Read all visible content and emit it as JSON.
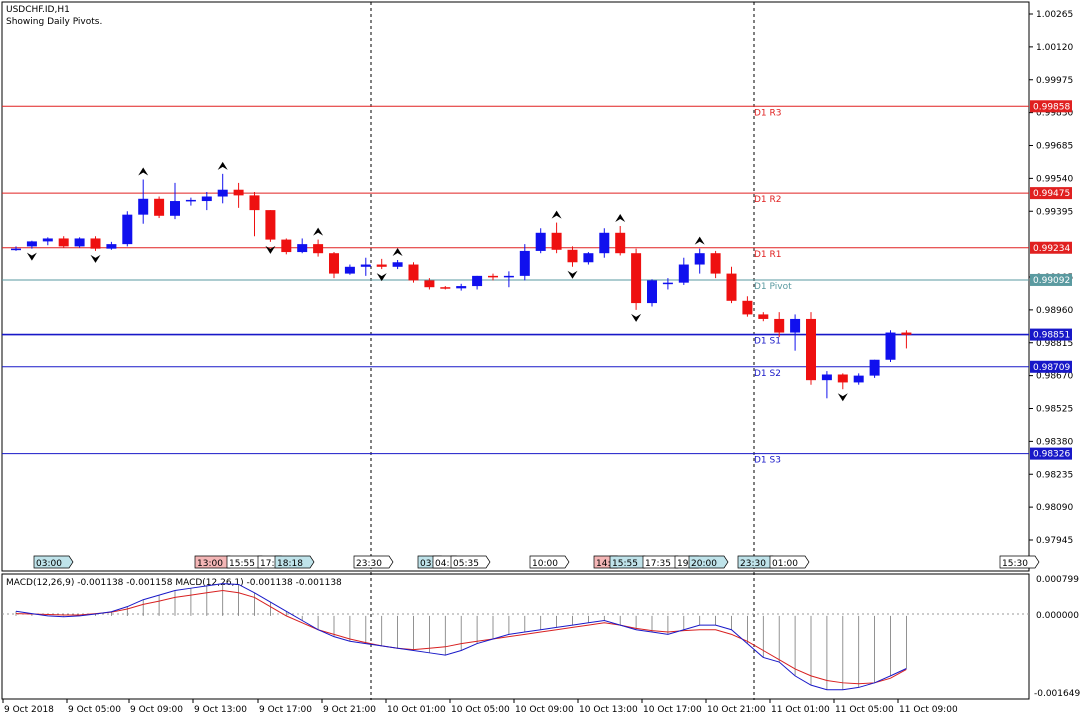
{
  "header": {
    "symbol": "USDCHF.ID,H1",
    "subtitle": "Showing Daily Pivots."
  },
  "price_axis": {
    "labels": [
      "1.00265",
      "1.00120",
      "0.99975",
      "0.99830",
      "0.99685",
      "0.99540",
      "0.99395",
      "0.99105",
      "0.98960",
      "0.98815",
      "0.98670",
      "0.98525",
      "0.98380",
      "0.98235",
      "0.98090",
      "0.97945"
    ]
  },
  "pivot_levels": [
    {
      "label": "D1 R3",
      "value": "0.99858",
      "price": 0.99858,
      "color": "#e02020"
    },
    {
      "label": "D1 R2",
      "value": "0.99475",
      "price": 0.99475,
      "color": "#e02020"
    },
    {
      "label": "D1 R1",
      "value": "0.99234",
      "price": 0.99234,
      "color": "#e02020"
    },
    {
      "label": "D1 Pivot",
      "value": "0.99092",
      "price": 0.99092,
      "color": "#5a9aa0"
    },
    {
      "label": "D1 S1",
      "value": "0.98851",
      "price": 0.98851,
      "color": "#1818c8"
    },
    {
      "label": "D1 S2",
      "value": "0.98709",
      "price": 0.98709,
      "color": "#1818c8"
    },
    {
      "label": "D1 S3",
      "value": "0.98326",
      "price": 0.98326,
      "color": "#1818c8"
    }
  ],
  "session_markers": [
    {
      "text": "03:00",
      "color": "#bfe3ea"
    },
    {
      "text": "13:00",
      "color": "#f4b6b6"
    },
    {
      "text": "15:55",
      "color": "#ffffff"
    },
    {
      "text": "17:",
      "color": "#ffffff"
    },
    {
      "text": "18:18",
      "color": "#bfe3ea"
    },
    {
      "text": "23:30",
      "color": "#ffffff"
    },
    {
      "text": "03:",
      "color": "#bfe3ea"
    },
    {
      "text": "04:",
      "color": "#ffffff"
    },
    {
      "text": "05:35",
      "color": "#ffffff"
    },
    {
      "text": "10:00",
      "color": "#ffffff"
    },
    {
      "text": "14:",
      "color": "#f4b6b6"
    },
    {
      "text": "15:55",
      "color": "#bfe3ea"
    },
    {
      "text": "17:35",
      "color": "#ffffff"
    },
    {
      "text": "19:",
      "color": "#ffffff"
    },
    {
      "text": "20:00",
      "color": "#bfe3ea"
    },
    {
      "text": "23:30",
      "color": "#bfe3ea"
    },
    {
      "text": "01:00",
      "color": "#ffffff"
    },
    {
      "text": "15:30",
      "color": "#ffffff"
    }
  ],
  "macd": {
    "label": "MACD(12,26,9) -0.001138 -0.001158 MACD(12,26,1) -0.001138 -0.001138",
    "axis_labels": [
      "0.000799",
      "0.000000",
      "-0.001649"
    ]
  },
  "time_axis": {
    "labels": [
      "9 Oct 2018",
      "9 Oct 05:00",
      "9 Oct 09:00",
      "9 Oct 13:00",
      "9 Oct 17:00",
      "9 Oct 21:00",
      "10 Oct 01:00",
      "10 Oct 05:00",
      "10 Oct 09:00",
      "10 Oct 13:00",
      "10 Oct 17:00",
      "10 Oct 21:00",
      "11 Oct 01:00",
      "11 Oct 05:00",
      "11 Oct 09:00"
    ]
  },
  "colors": {
    "bull": "#1010ee",
    "bear": "#ee1010",
    "resistance": "#e02020",
    "support": "#1818c8",
    "pivot": "#5a9aa0",
    "macd_main": "#1818c8",
    "macd_signal": "#d82020"
  },
  "chart_data": {
    "type": "candlestick",
    "symbol": "USDCHF.ID",
    "timeframe": "H1",
    "candles": [
      {
        "o": 0.9923,
        "h": 0.9924,
        "l": 0.9922,
        "c": 0.9923
      },
      {
        "o": 0.9924,
        "h": 0.99265,
        "l": 0.9923,
        "c": 0.99262
      },
      {
        "o": 0.99262,
        "h": 0.9928,
        "l": 0.99245,
        "c": 0.99275
      },
      {
        "o": 0.99275,
        "h": 0.99285,
        "l": 0.99235,
        "c": 0.9924
      },
      {
        "o": 0.9924,
        "h": 0.9928,
        "l": 0.99235,
        "c": 0.99275
      },
      {
        "o": 0.99275,
        "h": 0.99285,
        "l": 0.9922,
        "c": 0.9923
      },
      {
        "o": 0.9923,
        "h": 0.9926,
        "l": 0.99225,
        "c": 0.9925
      },
      {
        "o": 0.9925,
        "h": 0.99395,
        "l": 0.9924,
        "c": 0.9938
      },
      {
        "o": 0.9938,
        "h": 0.99535,
        "l": 0.9934,
        "c": 0.9945
      },
      {
        "o": 0.9945,
        "h": 0.9946,
        "l": 0.99365,
        "c": 0.99375
      },
      {
        "o": 0.99375,
        "h": 0.9952,
        "l": 0.9936,
        "c": 0.9944
      },
      {
        "o": 0.9944,
        "h": 0.99455,
        "l": 0.9942,
        "c": 0.99445
      },
      {
        "o": 0.9944,
        "h": 0.9948,
        "l": 0.994,
        "c": 0.9946
      },
      {
        "o": 0.9946,
        "h": 0.9956,
        "l": 0.9943,
        "c": 0.9949
      },
      {
        "o": 0.9949,
        "h": 0.9952,
        "l": 0.9941,
        "c": 0.99465
      },
      {
        "o": 0.99465,
        "h": 0.9948,
        "l": 0.99285,
        "c": 0.994
      },
      {
        "o": 0.994,
        "h": 0.994,
        "l": 0.9926,
        "c": 0.9927
      },
      {
        "o": 0.9927,
        "h": 0.99275,
        "l": 0.99205,
        "c": 0.99215
      },
      {
        "o": 0.99215,
        "h": 0.99275,
        "l": 0.9921,
        "c": 0.9925
      },
      {
        "o": 0.9925,
        "h": 0.9927,
        "l": 0.99195,
        "c": 0.9921
      },
      {
        "o": 0.9921,
        "h": 0.99215,
        "l": 0.991,
        "c": 0.9912
      },
      {
        "o": 0.9912,
        "h": 0.9916,
        "l": 0.99115,
        "c": 0.9915
      },
      {
        "o": 0.9915,
        "h": 0.9919,
        "l": 0.9911,
        "c": 0.9916
      },
      {
        "o": 0.9916,
        "h": 0.99185,
        "l": 0.9914,
        "c": 0.9915
      },
      {
        "o": 0.9915,
        "h": 0.9918,
        "l": 0.9914,
        "c": 0.9917
      },
      {
        "o": 0.9916,
        "h": 0.9917,
        "l": 0.9908,
        "c": 0.9909
      },
      {
        "o": 0.9909,
        "h": 0.991,
        "l": 0.9905,
        "c": 0.9906
      },
      {
        "o": 0.9906,
        "h": 0.99065,
        "l": 0.9905,
        "c": 0.99055
      },
      {
        "o": 0.99055,
        "h": 0.99075,
        "l": 0.99045,
        "c": 0.99065
      },
      {
        "o": 0.99065,
        "h": 0.9911,
        "l": 0.9905,
        "c": 0.9911
      },
      {
        "o": 0.9911,
        "h": 0.9912,
        "l": 0.9909,
        "c": 0.99105
      },
      {
        "o": 0.99105,
        "h": 0.9913,
        "l": 0.9906,
        "c": 0.9911
      },
      {
        "o": 0.9911,
        "h": 0.9925,
        "l": 0.9909,
        "c": 0.9922
      },
      {
        "o": 0.9922,
        "h": 0.9932,
        "l": 0.9921,
        "c": 0.993
      },
      {
        "o": 0.993,
        "h": 0.99345,
        "l": 0.9921,
        "c": 0.99225
      },
      {
        "o": 0.99225,
        "h": 0.9924,
        "l": 0.9915,
        "c": 0.9917
      },
      {
        "o": 0.9917,
        "h": 0.99215,
        "l": 0.9916,
        "c": 0.9921
      },
      {
        "o": 0.9921,
        "h": 0.9932,
        "l": 0.9919,
        "c": 0.993
      },
      {
        "o": 0.993,
        "h": 0.9933,
        "l": 0.992,
        "c": 0.9921
      },
      {
        "o": 0.9921,
        "h": 0.9923,
        "l": 0.9896,
        "c": 0.9899
      },
      {
        "o": 0.9899,
        "h": 0.99095,
        "l": 0.98975,
        "c": 0.9909
      },
      {
        "o": 0.9908,
        "h": 0.991,
        "l": 0.9905,
        "c": 0.9908
      },
      {
        "o": 0.9908,
        "h": 0.9919,
        "l": 0.9907,
        "c": 0.9916
      },
      {
        "o": 0.9916,
        "h": 0.9923,
        "l": 0.9912,
        "c": 0.9921
      },
      {
        "o": 0.9921,
        "h": 0.9922,
        "l": 0.991,
        "c": 0.9912
      },
      {
        "o": 0.9912,
        "h": 0.9915,
        "l": 0.9899,
        "c": 0.99
      },
      {
        "o": 0.99,
        "h": 0.9902,
        "l": 0.9893,
        "c": 0.9894
      },
      {
        "o": 0.9894,
        "h": 0.9895,
        "l": 0.9891,
        "c": 0.9892
      },
      {
        "o": 0.9892,
        "h": 0.9895,
        "l": 0.9884,
        "c": 0.9886
      },
      {
        "o": 0.9886,
        "h": 0.9894,
        "l": 0.9878,
        "c": 0.9892
      },
      {
        "o": 0.9892,
        "h": 0.9895,
        "l": 0.9863,
        "c": 0.9865
      },
      {
        "o": 0.9865,
        "h": 0.9869,
        "l": 0.9857,
        "c": 0.98675
      },
      {
        "o": 0.98675,
        "h": 0.9868,
        "l": 0.9861,
        "c": 0.9864
      },
      {
        "o": 0.9864,
        "h": 0.9868,
        "l": 0.9863,
        "c": 0.9867
      },
      {
        "o": 0.9867,
        "h": 0.9874,
        "l": 0.9866,
        "c": 0.9874
      },
      {
        "o": 0.9874,
        "h": 0.9887,
        "l": 0.9873,
        "c": 0.9886
      },
      {
        "o": 0.9886,
        "h": 0.9887,
        "l": 0.9879,
        "c": 0.9885
      }
    ],
    "fractals_up": [
      8,
      13,
      19,
      24,
      34,
      38,
      43
    ],
    "fractals_down": [
      1,
      5,
      16,
      23,
      35,
      39,
      52
    ],
    "macd_main": [
      0.0001,
      5e-05,
      0.0,
      -2e-05,
      0.0,
      4e-05,
      9e-05,
      0.0002,
      0.00035,
      0.00045,
      0.00055,
      0.0006,
      0.00065,
      0.0007,
      0.00068,
      0.0005,
      0.0003,
      0.0001,
      -0.0001,
      -0.0003,
      -0.00045,
      -0.00055,
      -0.0006,
      -0.00065,
      -0.0007,
      -0.00075,
      -0.0008,
      -0.00085,
      -0.00075,
      -0.0006,
      -0.0005,
      -0.0004,
      -0.00035,
      -0.0003,
      -0.00025,
      -0.0002,
      -0.00015,
      -0.0001,
      -0.0002,
      -0.0003,
      -0.00035,
      -0.0004,
      -0.0003,
      -0.0002,
      -0.0002,
      -0.0003,
      -0.0006,
      -0.0009,
      -0.001,
      -0.0013,
      -0.0015,
      -0.0016,
      -0.0016,
      -0.00155,
      -0.00145,
      -0.0013,
      -0.00114
    ],
    "macd_signal": [
      5e-05,
      4e-05,
      3e-05,
      2e-05,
      2e-05,
      5e-05,
      8e-05,
      0.00015,
      0.00025,
      0.00032,
      0.0004,
      0.00045,
      0.0005,
      0.00055,
      0.0005,
      0.0004,
      0.0002,
      0.0,
      -0.00015,
      -0.0003,
      -0.0004,
      -0.0005,
      -0.00058,
      -0.00065,
      -0.0007,
      -0.00073,
      -0.0007,
      -0.00067,
      -0.0006,
      -0.00055,
      -0.0005,
      -0.00045,
      -0.0004,
      -0.00035,
      -0.0003,
      -0.00025,
      -0.0002,
      -0.00015,
      -0.0002,
      -0.00027,
      -0.00032,
      -0.00035,
      -0.00032,
      -0.0003,
      -0.0003,
      -0.0004,
      -0.00055,
      -0.00075,
      -0.00095,
      -0.00115,
      -0.0013,
      -0.0014,
      -0.00145,
      -0.00147,
      -0.00145,
      -0.00135,
      -0.00116
    ],
    "price_ylim": [
      0.9788,
      1.0031
    ],
    "macd_ylim": [
      -0.00175,
      0.0009
    ],
    "grid": false
  }
}
